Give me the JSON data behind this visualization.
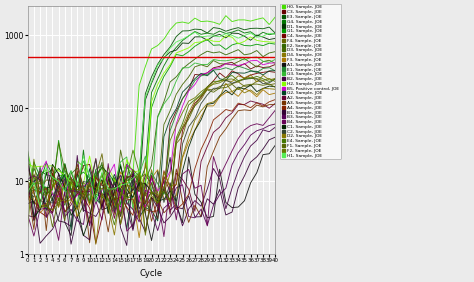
{
  "title": "",
  "xlabel": "Cycle",
  "ylabel": "",
  "xlim": [
    0,
    40
  ],
  "ylim_log": [
    1,
    2500
  ],
  "threshold_y": 500,
  "threshold_color": "#dd0000",
  "background_color": "#ebebeb",
  "grid_color": "#ffffff",
  "legend_entries": [
    {
      "label": "H0, Sample, JOE",
      "color": "#44dd00"
    },
    {
      "label": "C3, Sample, JOE",
      "color": "#660000"
    },
    {
      "label": "E3, Sample, JOE",
      "color": "#005500"
    },
    {
      "label": "G4, Sample, JOE",
      "color": "#007700"
    },
    {
      "label": "D1, Sample, JOE",
      "color": "#003300"
    },
    {
      "label": "G1, Sample, JOE",
      "color": "#009900"
    },
    {
      "label": "C4, Sample, JOE",
      "color": "#770000"
    },
    {
      "label": "F4, Sample, JOE",
      "color": "#666600"
    },
    {
      "label": "E2, Sample, JOE",
      "color": "#336600"
    },
    {
      "label": "D3, Sample, JOE",
      "color": "#446600"
    },
    {
      "label": "D4, Sample, JOE",
      "color": "#887700"
    },
    {
      "label": "F3, Sample, JOE",
      "color": "#aa7700"
    },
    {
      "label": "A1, Sample, JOE",
      "color": "#111111"
    },
    {
      "label": "E1, Sample, JOE",
      "color": "#228833"
    },
    {
      "label": "G3, Sample, JOE",
      "color": "#33bb33"
    },
    {
      "label": "B2, Sample, JOE",
      "color": "#440044"
    },
    {
      "label": "H2, Sample, JOE",
      "color": "#88ff00"
    },
    {
      "label": "B5, Positive control, JOE",
      "color": "#cc00cc"
    },
    {
      "label": "G2, Sample, JOE",
      "color": "#004422"
    },
    {
      "label": "A2, Sample, JOE",
      "color": "#660033"
    },
    {
      "label": "A3, Sample, JOE",
      "color": "#773300"
    },
    {
      "label": "A4, Sample, JOE",
      "color": "#882200"
    },
    {
      "label": "B1, Sample, JOE",
      "color": "#330033"
    },
    {
      "label": "B3, Sample, JOE",
      "color": "#550055"
    },
    {
      "label": "B4, Sample, JOE",
      "color": "#660055"
    },
    {
      "label": "C1, Sample, JOE",
      "color": "#002200"
    },
    {
      "label": "C2, Sample, JOE",
      "color": "#334433"
    },
    {
      "label": "D2, Sample, JOE",
      "color": "#887700"
    },
    {
      "label": "E4, Sample, JOE",
      "color": "#447700"
    },
    {
      "label": "F1, Sample, JOE",
      "color": "#556600"
    },
    {
      "label": "F2, Sample, JOE",
      "color": "#667700"
    },
    {
      "label": "H1, Sample, JOE",
      "color": "#55ee55"
    }
  ],
  "xticks": [
    0,
    1,
    2,
    3,
    4,
    5,
    6,
    7,
    8,
    9,
    10,
    11,
    12,
    13,
    14,
    15,
    16,
    17,
    18,
    19,
    20,
    21,
    22,
    23,
    24,
    25,
    26,
    27,
    28,
    29,
    30,
    31,
    32,
    33,
    34,
    35,
    36,
    37,
    38,
    39,
    40
  ],
  "yticks_major": [
    1,
    10,
    100,
    1000
  ],
  "figsize": [
    4.74,
    2.82
  ],
  "dpi": 100
}
